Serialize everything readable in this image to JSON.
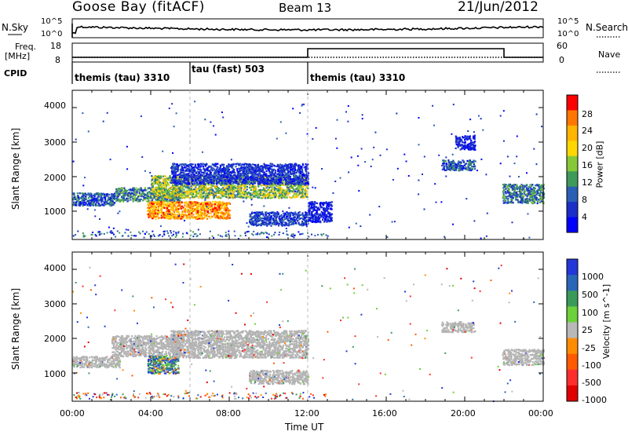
{
  "header": {
    "station": "Goose Bay (fitACF)",
    "beam": "Beam 13",
    "date": "21/Jun/2012"
  },
  "noise_panel": {
    "left_label": "N.Sky",
    "right_label": "N.Search",
    "left_ticks": [
      "10^5",
      "10^0"
    ],
    "right_ticks": [
      "10^5",
      "10^0"
    ]
  },
  "freq_panel": {
    "left_label_1": "Freq.",
    "left_label_2": "[MHz]",
    "left_ticks": [
      "18",
      "8"
    ],
    "right_label": "Nave",
    "right_ticks": [
      "60",
      "0"
    ]
  },
  "cpid_panel": {
    "label": "CPID",
    "segments": [
      {
        "label": "themis (tau) 3310",
        "start_h": 0,
        "end_h": 6
      },
      {
        "label": "tau (fast) 503",
        "start_h": 6,
        "end_h": 12
      },
      {
        "label": "themis (tau) 3310",
        "start_h": 12,
        "end_h": 24
      }
    ]
  },
  "power_colorbar": {
    "label": "Power [dB]",
    "ticks": [
      "28",
      "24",
      "20",
      "16",
      "12",
      "8",
      "4"
    ],
    "colors": [
      "#ff0000",
      "#ff7700",
      "#ffb400",
      "#ffd700",
      "#86c837",
      "#3f9a5a",
      "#2a5fb5",
      "#1b2ec8",
      "#0000ff"
    ]
  },
  "velocity_colorbar": {
    "label": "Velocity [m s^-1]",
    "ticks": [
      "1000",
      "500",
      "100",
      "25",
      "-25",
      "-100",
      "-500",
      "-1000"
    ],
    "colors": [
      "#2437d8",
      "#2a66b8",
      "#3a9a5a",
      "#6cd13a",
      "#b8b8b8",
      "#ff8c00",
      "#ff5a00",
      "#ff2e2e",
      "#e00000"
    ]
  },
  "colors": {
    "gs_gray": "#b4b4b4",
    "axis": "#000000",
    "dashed_line": "#bbbbbb"
  },
  "chart_data": {
    "type": "heatmap",
    "title": "Goose Bay (fitACF)   Beam 13   21/Jun/2012",
    "xlabel": "Time UT",
    "ylabel": "Slant Range [km]",
    "xlim_hours": [
      0,
      24
    ],
    "ylim_km": [
      180,
      4500
    ],
    "x_ticks": [
      "00:00",
      "04:00",
      "08:00",
      "12:00",
      "16:00",
      "20:00",
      "00:00"
    ],
    "y_ticks": [
      "1000",
      "2000",
      "3000",
      "4000"
    ],
    "dashed_time_markers_h": [
      6,
      12
    ],
    "power_regions": [
      {
        "t": [
          0.0,
          2.2
        ],
        "r": [
          1180,
          1550
        ],
        "p": [
          4,
          14
        ]
      },
      {
        "t": [
          2.2,
          5.5
        ],
        "r": [
          1300,
          1700
        ],
        "p": [
          6,
          16
        ]
      },
      {
        "t": [
          3.8,
          8.0
        ],
        "r": [
          800,
          1300
        ],
        "p": [
          18,
          28
        ]
      },
      {
        "t": [
          4.0,
          12.0
        ],
        "r": [
          1400,
          2050
        ],
        "p": [
          10,
          22
        ]
      },
      {
        "t": [
          5.0,
          12.0
        ],
        "r": [
          1800,
          2400
        ],
        "p": [
          4,
          10
        ]
      },
      {
        "t": [
          9.0,
          12.0
        ],
        "r": [
          600,
          1000
        ],
        "p": [
          4,
          12
        ]
      },
      {
        "t": [
          12.0,
          13.2
        ],
        "r": [
          700,
          1300
        ],
        "p": [
          4,
          8
        ]
      },
      {
        "t": [
          18.8,
          20.5
        ],
        "r": [
          2200,
          2500
        ],
        "p": [
          4,
          14
        ]
      },
      {
        "t": [
          21.9,
          24.0
        ],
        "r": [
          1250,
          1800
        ],
        "p": [
          6,
          16
        ]
      },
      {
        "t": [
          19.5,
          20.5
        ],
        "r": [
          2800,
          3200
        ],
        "p": [
          4,
          8
        ]
      }
    ],
    "velocity_regions": [
      {
        "t": [
          0.0,
          2.4
        ],
        "r": [
          1180,
          1500
        ],
        "gs": true
      },
      {
        "t": [
          2.0,
          5.5
        ],
        "r": [
          1500,
          2100
        ],
        "gs": true
      },
      {
        "t": [
          3.8,
          5.4
        ],
        "r": [
          1000,
          1500
        ],
        "gs": false,
        "v": "mixed"
      },
      {
        "t": [
          5.0,
          12.0
        ],
        "r": [
          1450,
          2250
        ],
        "gs": true
      },
      {
        "t": [
          9.0,
          12.0
        ],
        "r": [
          700,
          1100
        ],
        "gs": true
      },
      {
        "t": [
          18.8,
          20.5
        ],
        "r": [
          2200,
          2500
        ],
        "gs": true
      },
      {
        "t": [
          21.9,
          24.0
        ],
        "r": [
          1250,
          1700
        ],
        "gs": true
      }
    ]
  }
}
